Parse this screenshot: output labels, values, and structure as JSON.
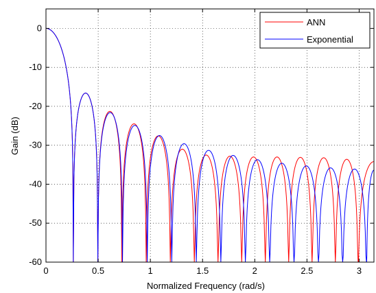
{
  "chart_data": {
    "type": "line",
    "title": "",
    "xlabel": "Normalized Frequency (rad/s)",
    "ylabel": "Gain (dB)",
    "xlim": [
      0,
      3.1416
    ],
    "ylim": [
      -60,
      5
    ],
    "xticks": [
      0,
      0.5,
      1,
      1.5,
      2,
      2.5,
      3
    ],
    "xtick_labels": [
      "0",
      "0.5",
      "1",
      "1.5",
      "2",
      "2.5",
      "3"
    ],
    "yticks": [
      0,
      -10,
      -20,
      -30,
      -40,
      -50,
      -60
    ],
    "ytick_labels": [
      "0",
      "-10",
      "-20",
      "-30",
      "-40",
      "-50",
      "-60"
    ],
    "grid": true,
    "legend_position": "top-right",
    "series": [
      {
        "name": "ANN",
        "color": "#ff0000",
        "nulls": [
          0.262,
          0.497,
          0.727,
          0.96,
          1.191,
          1.421,
          1.648,
          1.875,
          2.101,
          2.325,
          2.549,
          2.772,
          2.99
        ],
        "lobe_peaks_db": [
          -16.6,
          -21.3,
          -24.5,
          -27.6,
          -31.0,
          -32.5,
          -32.8,
          -33.0,
          -33.0,
          -33.1,
          -33.2,
          -33.6,
          -34.2,
          -34.4
        ]
      },
      {
        "name": "Exponential",
        "color": "#0000ff",
        "nulls": [
          0.262,
          0.497,
          0.733,
          0.97,
          1.205,
          1.44,
          1.675,
          1.91,
          2.143,
          2.376,
          2.61,
          2.842,
          3.07
        ],
        "lobe_peaks_db": [
          -16.6,
          -21.6,
          -24.9,
          -27.5,
          -29.6,
          -31.3,
          -32.6,
          -33.7,
          -34.6,
          -35.3,
          -35.8,
          -36.1,
          -36.4,
          -36.4
        ]
      }
    ]
  },
  "legend": {
    "entries": [
      "ANN",
      "Exponential"
    ]
  }
}
